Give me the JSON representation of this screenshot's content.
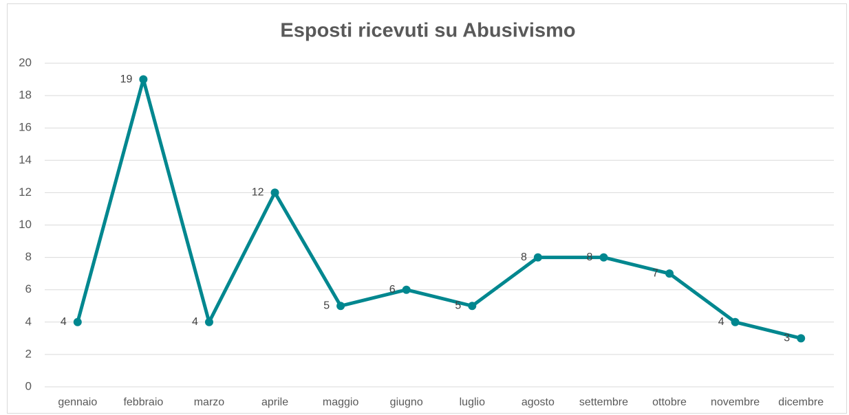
{
  "chart_data": {
    "type": "line",
    "title": "Esposti ricevuti su Abusivismo",
    "categories": [
      "gennaio",
      "febbraio",
      "marzo",
      "aprile",
      "maggio",
      "giugno",
      "luglio",
      "agosto",
      "settembre",
      "ottobre",
      "novembre",
      "dicembre"
    ],
    "series": [
      {
        "name": "Esposti",
        "color": "#00878f",
        "values": [
          4,
          19,
          4,
          12,
          5,
          6,
          5,
          8,
          8,
          7,
          4,
          3
        ]
      }
    ],
    "ylim": [
      0,
      20
    ],
    "yticks": [
      0,
      2,
      4,
      6,
      8,
      10,
      12,
      14,
      16,
      18,
      20
    ],
    "grid": true
  }
}
